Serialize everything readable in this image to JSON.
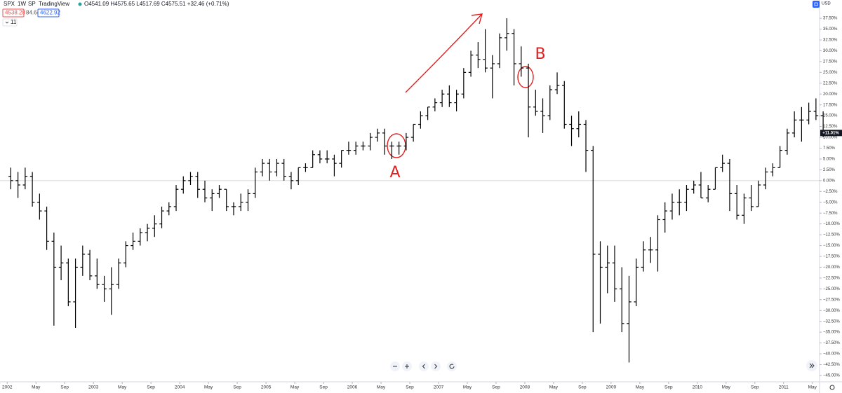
{
  "header": {
    "symbol": "SPX",
    "interval": "1W",
    "exchange": "SP",
    "source": "TradingView",
    "ohlc": "O4541.09 H4575.65 L4517.69 C4575.51 +32.46 (+0.71%)",
    "bid": "4538.28",
    "spread": "84.64",
    "ask": "4622.92",
    "indicators": "11",
    "currency": "USD"
  },
  "chart_data": {
    "type": "ohlc",
    "color": "#000000",
    "x": [
      "2002-01",
      "2002-02",
      "2002-03",
      "2002-04",
      "2002-05",
      "2002-06",
      "2002-07",
      "2002-08",
      "2002-09",
      "2002-10",
      "2002-11",
      "2002-12",
      "2003-01",
      "2003-02",
      "2003-03",
      "2003-04",
      "2003-05",
      "2003-06",
      "2003-07",
      "2003-08",
      "2003-09",
      "2003-10",
      "2003-11",
      "2003-12",
      "2004-01",
      "2004-02",
      "2004-03",
      "2004-04",
      "2004-05",
      "2004-06",
      "2004-07",
      "2004-08",
      "2004-09",
      "2004-10",
      "2004-11",
      "2004-12",
      "2005-01",
      "2005-02",
      "2005-03",
      "2005-04",
      "2005-05",
      "2005-06",
      "2005-07",
      "2005-08",
      "2005-09",
      "2005-10",
      "2005-11",
      "2005-12",
      "2006-01",
      "2006-02",
      "2006-03",
      "2006-04",
      "2006-05",
      "2006-06",
      "2006-07",
      "2006-08",
      "2006-09",
      "2006-10",
      "2006-11",
      "2006-12",
      "2007-01",
      "2007-02",
      "2007-03",
      "2007-04",
      "2007-05",
      "2007-06",
      "2007-07",
      "2007-08",
      "2007-09",
      "2007-10",
      "2007-11",
      "2007-12",
      "2008-01",
      "2008-02",
      "2008-03",
      "2008-04",
      "2008-05",
      "2008-06",
      "2008-07",
      "2008-08",
      "2008-09",
      "2008-10",
      "2008-11",
      "2008-12",
      "2009-01",
      "2009-02",
      "2009-03",
      "2009-04",
      "2009-05",
      "2009-06",
      "2009-07",
      "2009-08",
      "2009-09",
      "2009-10",
      "2009-11",
      "2009-12",
      "2010-01",
      "2010-02",
      "2010-03",
      "2010-04",
      "2010-05",
      "2010-06",
      "2010-07",
      "2010-08",
      "2010-09",
      "2010-10",
      "2010-11",
      "2010-12",
      "2011-01",
      "2011-02",
      "2011-03",
      "2011-04",
      "2011-05",
      "2011-06"
    ],
    "open": [
      1,
      0,
      -1,
      1,
      -5,
      -7,
      -14,
      -20,
      -19,
      -28,
      -20,
      -17,
      -22,
      -24,
      -25,
      -24,
      -19,
      -15,
      -14,
      -12,
      -11,
      -10,
      -7,
      -6,
      -2,
      0,
      1,
      -2,
      -4,
      -3,
      -2,
      -6,
      -6,
      -5,
      -3,
      2,
      4,
      2,
      4,
      1,
      0,
      3,
      3,
      6,
      5,
      5,
      4,
      7,
      7,
      8,
      8,
      10,
      11,
      8,
      8,
      8,
      10,
      13,
      15,
      17,
      18,
      20,
      18,
      20,
      25,
      29,
      28,
      26,
      27,
      33,
      34,
      27,
      26,
      17,
      16,
      15,
      21,
      22,
      13,
      12,
      13,
      7,
      -17,
      -20,
      -19,
      -25,
      -33,
      -28,
      -20,
      -16,
      -16,
      -9,
      -7,
      -5,
      -5,
      -2,
      -1,
      -4,
      -2,
      3,
      4,
      -3,
      -8,
      -4,
      -6,
      -1,
      2,
      3,
      7,
      11,
      14,
      14,
      16,
      15
    ],
    "high": [
      3,
      2,
      3,
      2,
      -3,
      -6,
      -12,
      -15,
      -18,
      -18,
      -15,
      -16,
      -18,
      -22,
      -20,
      -18,
      -14,
      -12,
      -11,
      -10,
      -8,
      -6,
      -5,
      -1,
      1,
      2,
      2,
      0,
      -2,
      -1,
      -2,
      -5,
      -3,
      -2,
      3,
      5,
      5,
      5,
      5,
      2,
      3,
      4,
      7,
      7,
      7,
      6,
      7,
      9,
      9,
      9,
      11,
      12,
      12,
      9,
      9,
      11,
      13,
      16,
      17,
      19,
      21,
      22,
      21,
      26,
      30,
      32,
      35,
      29,
      34,
      37.5,
      35,
      31,
      27,
      21,
      19,
      22,
      25,
      23,
      15,
      16,
      14,
      8,
      -14,
      -15,
      -15,
      -20,
      -22,
      -18,
      -14,
      -13,
      -8,
      -5,
      -3,
      -2,
      -1,
      0,
      2,
      -1,
      3,
      6,
      5,
      -1,
      -3,
      -1,
      0,
      3,
      4,
      8,
      12,
      16,
      17,
      18,
      19,
      16
    ],
    "low": [
      -2,
      -4,
      -2,
      -6,
      -9,
      -16,
      -33.5,
      -23,
      -29,
      -34,
      -22,
      -23,
      -25,
      -28,
      -31,
      -25,
      -20,
      -16,
      -15,
      -14,
      -13,
      -11,
      -8,
      -7,
      -3,
      -1,
      -4,
      -5,
      -7,
      -4,
      -7,
      -8,
      -7,
      -7,
      -4,
      1,
      0,
      1,
      0,
      -2,
      -1,
      2,
      3,
      4,
      4,
      1,
      3,
      6,
      6,
      7,
      7,
      9,
      6,
      5,
      6,
      7,
      9,
      12,
      14,
      16,
      17,
      17,
      16,
      19,
      24,
      26,
      25,
      19,
      26,
      30,
      22,
      24,
      10,
      15,
      11,
      14,
      20,
      12,
      8,
      10,
      2,
      -35,
      -33,
      -26,
      -28,
      -35,
      -42,
      -29,
      -21,
      -19,
      -21,
      -12,
      -9,
      -8,
      -7,
      -3,
      -4,
      -5,
      -2,
      2,
      -7,
      -9,
      -10,
      -7,
      -6,
      -2,
      1,
      3,
      6,
      10,
      9,
      13,
      14,
      10
    ],
    "close": [
      0,
      -1,
      1,
      -5,
      -7,
      -14,
      -20,
      -19,
      -28,
      -20,
      -17,
      -22,
      -24,
      -25,
      -24,
      -19,
      -15,
      -14,
      -12,
      -11,
      -10,
      -7,
      -6,
      -2,
      0,
      1,
      -2,
      -4,
      -3,
      -2,
      -6,
      -6,
      -5,
      -3,
      2,
      4,
      2,
      4,
      1,
      0,
      3,
      3,
      6,
      5,
      5,
      4,
      7,
      7,
      8,
      8,
      10,
      11,
      8,
      8,
      8,
      10,
      13,
      15,
      17,
      18,
      20,
      18,
      20,
      25,
      29,
      28,
      26,
      27,
      33,
      34,
      27,
      26,
      17,
      16,
      15,
      21,
      22,
      13,
      12,
      13,
      7,
      -17,
      -20,
      -19,
      -25,
      -33,
      -28,
      -20,
      -16,
      -16,
      -9,
      -7,
      -5,
      -5,
      -2,
      -1,
      -4,
      -2,
      3,
      4,
      -3,
      -8,
      -4,
      -6,
      -1,
      2,
      3,
      7,
      11,
      14,
      14,
      16,
      15,
      11
    ],
    "xlim": [
      "2001-12",
      "2011-06"
    ],
    "xticks": [
      {
        "value": "2002-01",
        "label": "2002"
      },
      {
        "value": "2002-05",
        "label": "May"
      },
      {
        "value": "2002-09",
        "label": "Sep"
      },
      {
        "value": "2003-01",
        "label": "2003"
      },
      {
        "value": "2003-05",
        "label": "May"
      },
      {
        "value": "2003-09",
        "label": "Sep"
      },
      {
        "value": "2004-01",
        "label": "2004"
      },
      {
        "value": "2004-05",
        "label": "May"
      },
      {
        "value": "2004-09",
        "label": "Sep"
      },
      {
        "value": "2005-01",
        "label": "2005"
      },
      {
        "value": "2005-05",
        "label": "May"
      },
      {
        "value": "2005-09",
        "label": "Sep"
      },
      {
        "value": "2006-01",
        "label": "2006"
      },
      {
        "value": "2006-05",
        "label": "May"
      },
      {
        "value": "2006-09",
        "label": "Sep"
      },
      {
        "value": "2007-01",
        "label": "2007"
      },
      {
        "value": "2007-05",
        "label": "May"
      },
      {
        "value": "2007-09",
        "label": "Sep"
      },
      {
        "value": "2008-01",
        "label": "2008"
      },
      {
        "value": "2008-05",
        "label": "May"
      },
      {
        "value": "2008-09",
        "label": "Sep"
      },
      {
        "value": "2009-01",
        "label": "2009"
      },
      {
        "value": "2009-05",
        "label": "May"
      },
      {
        "value": "2009-09",
        "label": "Sep"
      },
      {
        "value": "2010-01",
        "label": "2010"
      },
      {
        "value": "2010-05",
        "label": "May"
      },
      {
        "value": "2010-09",
        "label": "Sep"
      },
      {
        "value": "2011-01",
        "label": "2011"
      },
      {
        "value": "2011-05",
        "label": "May"
      }
    ],
    "ylim": [
      -46.46,
      41.72
    ],
    "yticks": [
      {
        "value": 37.5,
        "label": "37.50%"
      },
      {
        "value": 35,
        "label": "35.00%"
      },
      {
        "value": 32.5,
        "label": "32.50%"
      },
      {
        "value": 30,
        "label": "30.00%"
      },
      {
        "value": 27.5,
        "label": "27.50%"
      },
      {
        "value": 25,
        "label": "25.00%"
      },
      {
        "value": 22.5,
        "label": "22.50%"
      },
      {
        "value": 20,
        "label": "20.00%"
      },
      {
        "value": 17.5,
        "label": "17.50%"
      },
      {
        "value": 15,
        "label": "15.00%"
      },
      {
        "value": 12.5,
        "label": "12.50%"
      },
      {
        "value": 10,
        "label": "10.00%"
      },
      {
        "value": 7.5,
        "label": "7.50%"
      },
      {
        "value": 5,
        "label": "5.00%"
      },
      {
        "value": 2.5,
        "label": "2.50%"
      },
      {
        "value": 0,
        "label": "0.00%"
      },
      {
        "value": -2.5,
        "label": "−2.50%"
      },
      {
        "value": -5,
        "label": "−5.00%"
      },
      {
        "value": -7.5,
        "label": "−7.50%"
      },
      {
        "value": -10,
        "label": "−10.00%"
      },
      {
        "value": -12.5,
        "label": "−12.50%"
      },
      {
        "value": -15,
        "label": "−15.00%"
      },
      {
        "value": -17.5,
        "label": "−17.50%"
      },
      {
        "value": -20,
        "label": "−20.00%"
      },
      {
        "value": -22.5,
        "label": "−22.50%"
      },
      {
        "value": -25,
        "label": "−25.00%"
      },
      {
        "value": -27.5,
        "label": "−27.50%"
      },
      {
        "value": -30,
        "label": "−30.00%"
      },
      {
        "value": -32.5,
        "label": "−32.50%"
      },
      {
        "value": -35,
        "label": "−35.00%"
      },
      {
        "value": -37.5,
        "label": "−37.50%"
      },
      {
        "value": -40,
        "label": "−40.00%"
      },
      {
        "value": -42.5,
        "label": "−42.50%"
      },
      {
        "value": -45,
        "label": "−45.00%"
      }
    ],
    "baseline": 0,
    "last_value": {
      "value": 11.01,
      "label": "+11.01%"
    },
    "annotations": [
      "A",
      "B"
    ]
  }
}
